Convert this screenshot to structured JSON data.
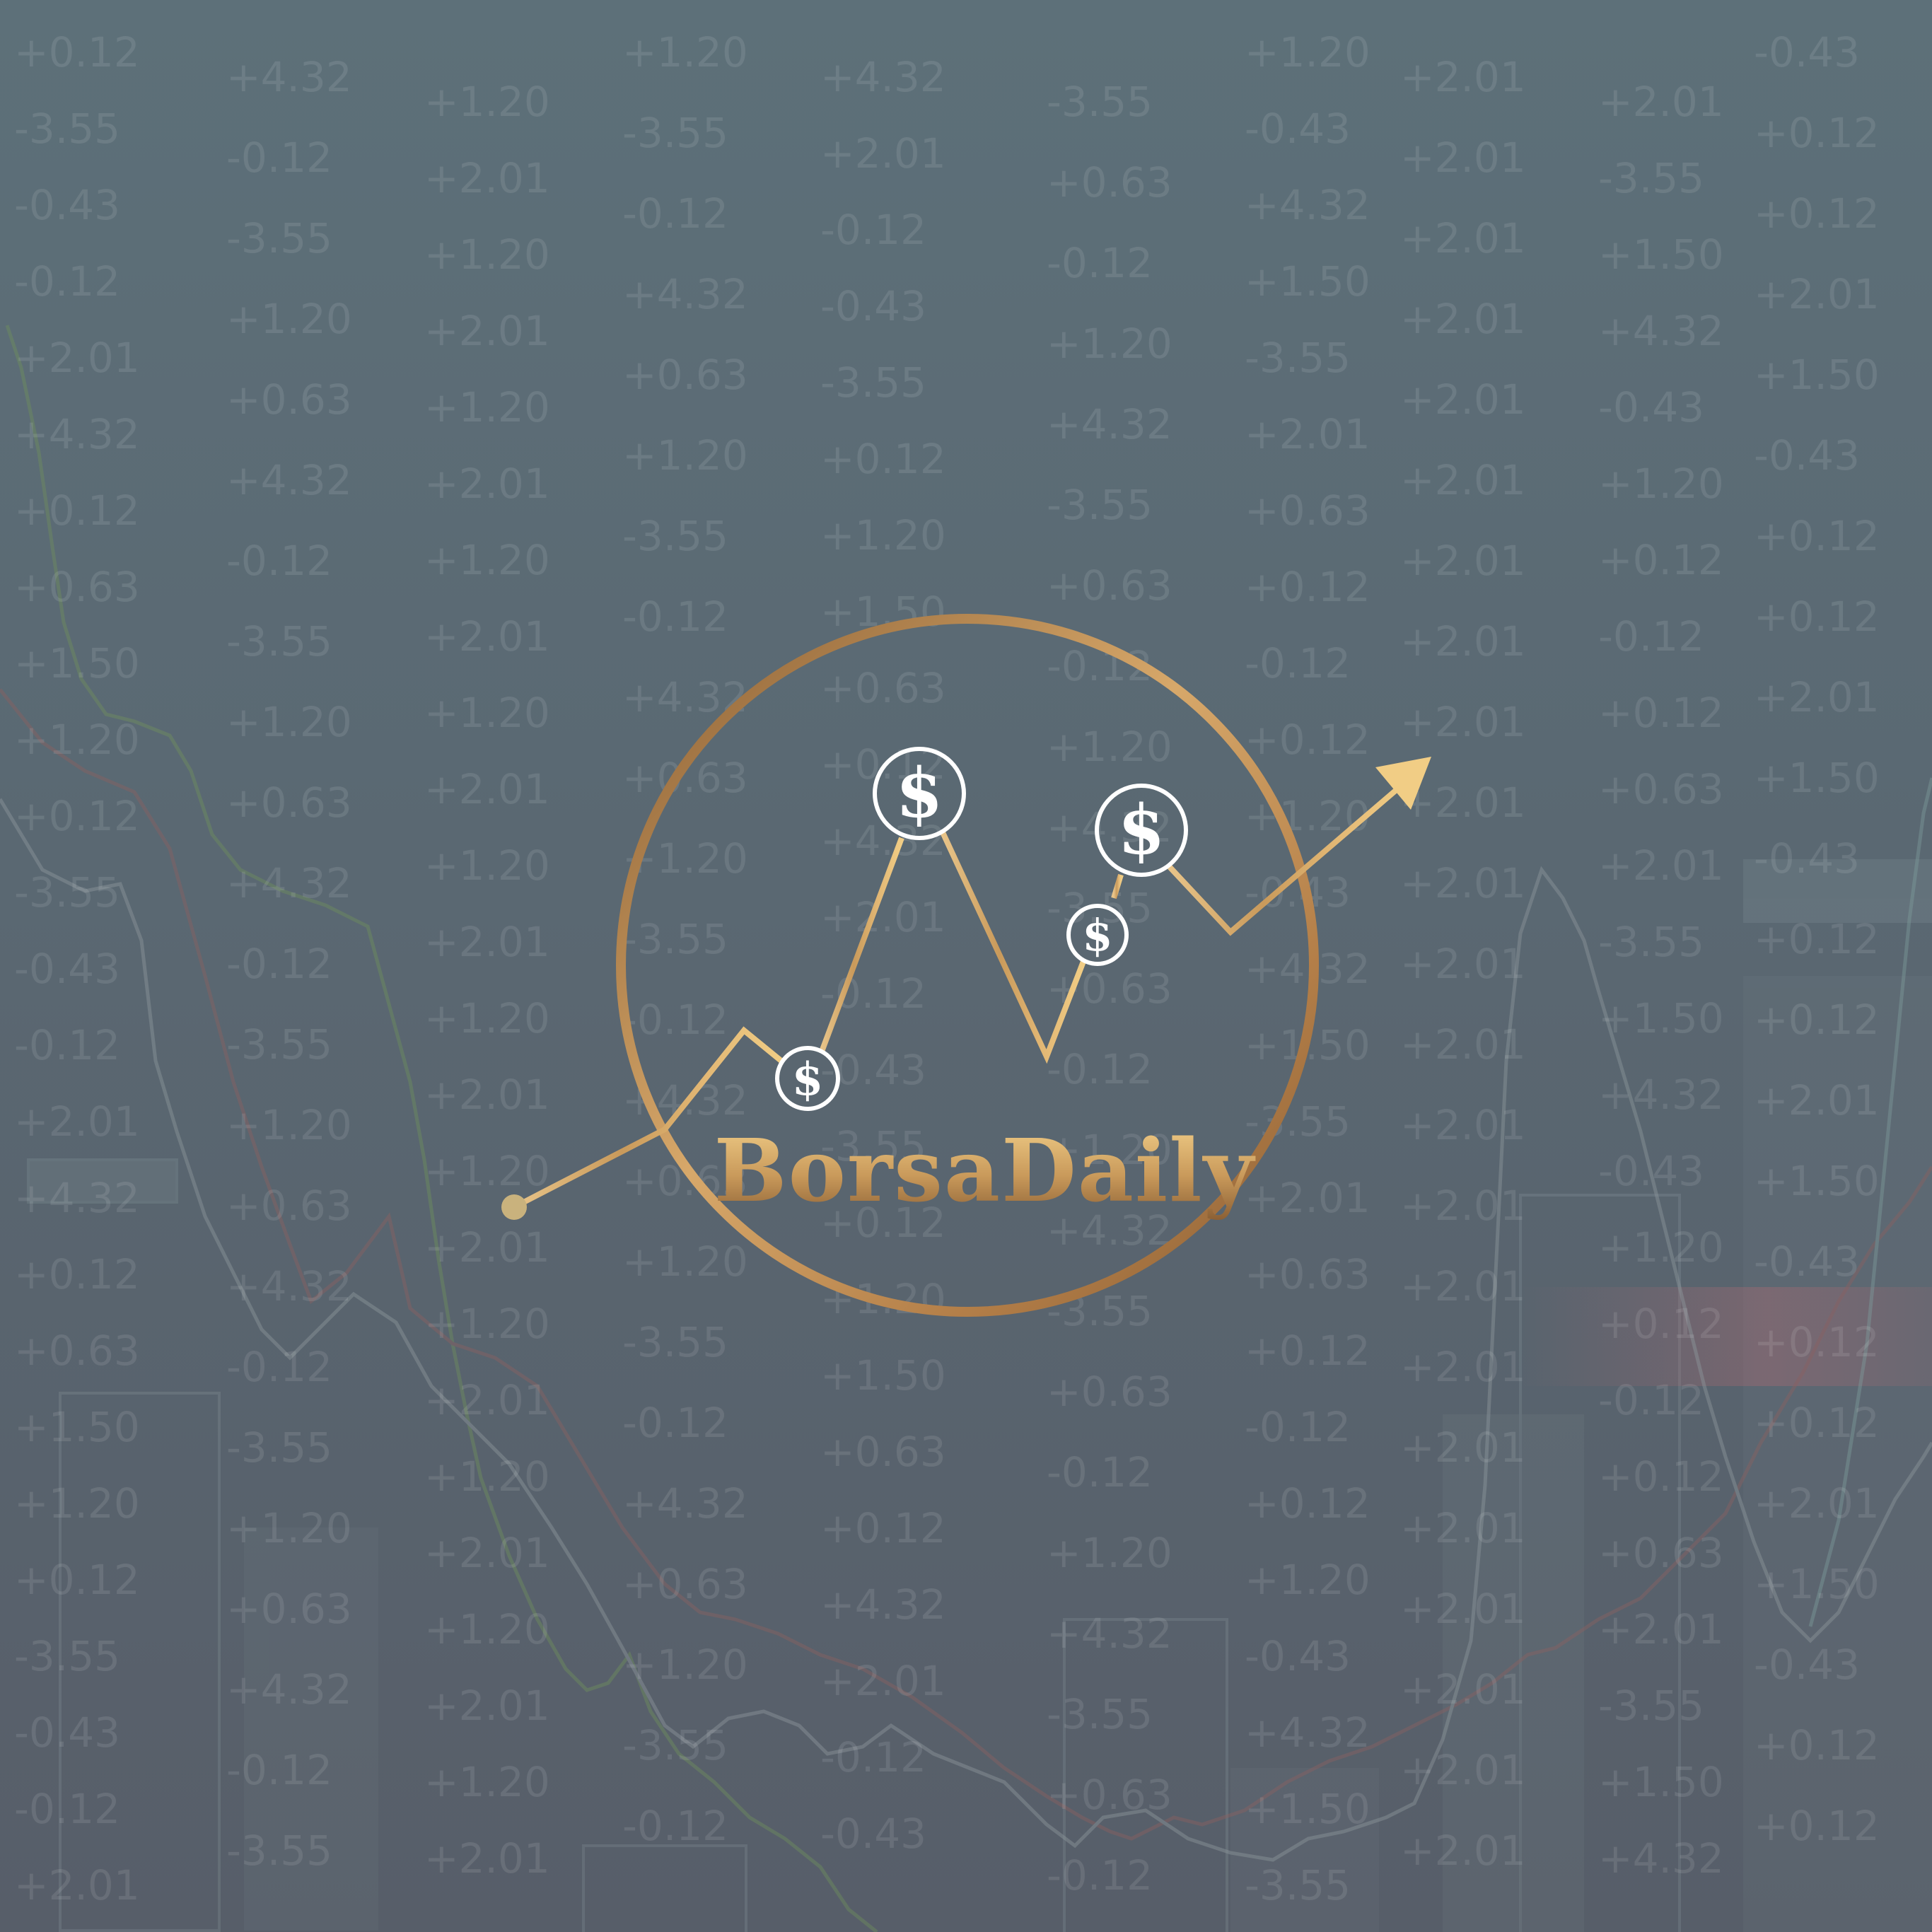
{
  "brand": {
    "name": "BorsaDaily",
    "coin_symbol": "$",
    "colors": {
      "gold_light": "#f1cd85",
      "gold_mid": "#c99a5b",
      "gold_dark": "#8a5e33",
      "dot": "#c9b27d"
    }
  },
  "background": {
    "ticker_values": [
      "+0.12",
      "+0.63",
      "+2.01",
      "-3.55",
      "+1.50",
      "+4.32",
      "-0.43",
      "+1.20",
      "+0.12",
      "-0.12"
    ],
    "line_colors": {
      "green": "#6f8f5d",
      "red": "#8a6161",
      "grey": "#8d979c"
    },
    "icons": [
      "candlestick-bars-icon",
      "price-line-chart-icon"
    ]
  }
}
